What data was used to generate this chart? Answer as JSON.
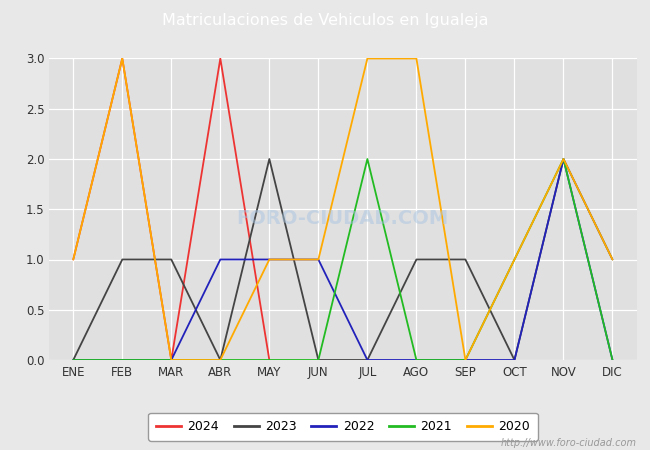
{
  "title": "Matriculaciones de Vehiculos en Igualeja",
  "months": [
    "ENE",
    "FEB",
    "MAR",
    "ABR",
    "MAY",
    "JUN",
    "JUL",
    "AGO",
    "SEP",
    "OCT",
    "NOV",
    "DIC"
  ],
  "series": {
    "2024": {
      "color": "#ee3333",
      "values": [
        1,
        3,
        0,
        3,
        0,
        null,
        null,
        null,
        null,
        null,
        null,
        null
      ]
    },
    "2023": {
      "color": "#444444",
      "values": [
        0,
        1,
        1,
        0,
        2,
        0,
        0,
        1,
        1,
        0,
        2,
        1
      ]
    },
    "2022": {
      "color": "#2222bb",
      "values": [
        0,
        0,
        0,
        1,
        1,
        1,
        0,
        0,
        0,
        0,
        2,
        0
      ]
    },
    "2021": {
      "color": "#22bb22",
      "values": [
        0,
        0,
        0,
        0,
        0,
        0,
        2,
        0,
        0,
        1,
        2,
        0
      ]
    },
    "2020": {
      "color": "#ffaa00",
      "values": [
        1,
        3,
        0,
        0,
        1,
        1,
        3,
        3,
        0,
        1,
        2,
        1
      ]
    }
  },
  "ylim": [
    0.0,
    3.0
  ],
  "yticks": [
    0.0,
    0.5,
    1.0,
    1.5,
    2.0,
    2.5,
    3.0
  ],
  "background_color": "#e8e8e8",
  "plot_bg_color": "#e0e0e0",
  "title_bg_color": "#4488cc",
  "title_color": "#ffffff",
  "watermark": "http://www.foro-ciudad.com",
  "legend_years": [
    "2024",
    "2023",
    "2022",
    "2021",
    "2020"
  ],
  "fig_width": 6.5,
  "fig_height": 4.5,
  "dpi": 100
}
